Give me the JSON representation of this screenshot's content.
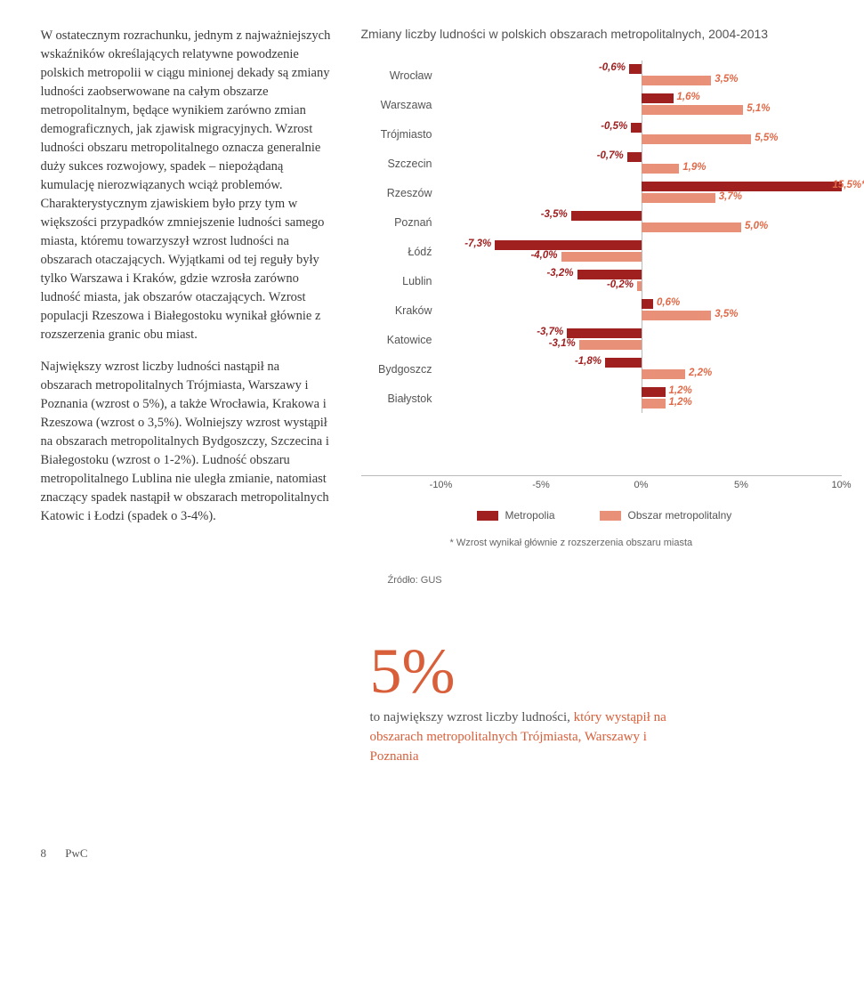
{
  "body_paragraphs": [
    "W ostatecznym rozrachunku, jednym z najważniejszych wskaźników określających relatywne powodzenie polskich metropolii w ciągu minionej dekady są zmiany ludności zaobserwowane na całym obszarze metropolitalnym, będące wynikiem zarówno zmian demograficznych, jak zjawisk migracyjnych. Wzrost ludności obszaru metropolitalnego oznacza generalnie duży sukces rozwojowy, spadek – niepożądaną kumulację nierozwiązanych wciąż problemów. Charakterystycznym zjawiskiem było przy tym w większości przypadków zmniejszenie ludności samego miasta, któremu towarzyszył wzrost ludności na obszarach otaczających. Wyjątkami od tej reguły były tylko Warszawa i Kraków, gdzie wzrosła zarówno ludność miasta, jak obszarów otaczających. Wzrost populacji Rzeszowa i Białegostoku wynikał głównie z rozszerzenia granic obu miast.",
    "Największy wzrost liczby ludności nastąpił na obszarach metropolitalnych Trójmiasta, Warszawy i Poznania (wzrost o 5%), a także Wrocławia, Krakowa i Rzeszowa (wzrost o 3,5%). Wolniejszy wzrost wystąpił na obszarach metropolitalnych Bydgoszczy, Szczecina i Białegostoku (wzrost o 1-2%). Ludność obszaru metropolitalnego Lublina nie uległa zmianie, natomiast znaczący spadek nastąpił w obszarach metropolitalnych Katowic i Łodzi (spadek o 3-4%)."
  ],
  "chart": {
    "title": "Zmiany liczby ludności w polskich obszarach metropolitalnych, 2004-2013",
    "type": "bar",
    "colors": {
      "metropolia": "#a02020",
      "obszar": "#e89078",
      "text_neg": "#a02020",
      "text_pos": "#e06a48",
      "grid": "#b9b9b9"
    },
    "x_min": -10,
    "x_max": 10,
    "x_ticks": [
      -10,
      -5,
      0,
      5,
      10
    ],
    "label_fontsize": 12.5,
    "value_fontsize": 11.5,
    "rows": [
      {
        "label": "Wrocław",
        "metro": -0.6,
        "metro_label": "-0,6%",
        "obszar": 3.5,
        "obszar_label": "3,5%"
      },
      {
        "label": "Warszawa",
        "metro": 1.6,
        "metro_label": "1,6%",
        "obszar": 5.1,
        "obszar_label": "5,1%"
      },
      {
        "label": "Trójmiasto",
        "metro": -0.5,
        "metro_label": "-0,5%",
        "obszar": 5.5,
        "obszar_label": "5,5%"
      },
      {
        "label": "Szczecin",
        "metro": -0.7,
        "metro_label": "-0,7%",
        "obszar": 1.9,
        "obszar_label": "1,9%"
      },
      {
        "label": "Rzeszów",
        "metro": 15.5,
        "metro_label": "15,5%*",
        "obszar": 3.7,
        "obszar_label": "3,7%",
        "metro_clip": 10
      },
      {
        "label": "Poznań",
        "metro": -3.5,
        "metro_label": "-3,5%",
        "obszar": 5.0,
        "obszar_label": "5,0%"
      },
      {
        "label": "Łódź",
        "metro": -7.3,
        "metro_label": "-7,3%",
        "obszar": -4.0,
        "obszar_label": "-4,0%"
      },
      {
        "label": "Lublin",
        "metro": -3.2,
        "metro_label": "-3,2%",
        "obszar": -0.2,
        "obszar_label": "-0,2%"
      },
      {
        "label": "Kraków",
        "metro": 0.6,
        "metro_label": "0,6%",
        "obszar": 3.5,
        "obszar_label": "3,5%"
      },
      {
        "label": "Katowice",
        "metro": -3.7,
        "metro_label": "-3,7%",
        "obszar": -3.1,
        "obszar_label": "-3,1%"
      },
      {
        "label": "Bydgoszcz",
        "metro": -1.8,
        "metro_label": "-1,8%",
        "obszar": 2.2,
        "obszar_label": "2,2%"
      },
      {
        "label": "Białystok",
        "metro": 1.2,
        "metro_label": "1,2%",
        "obszar": 1.2,
        "obszar_label": "1,2%"
      }
    ],
    "legend": [
      {
        "label": "Metropolia",
        "color": "#a02020"
      },
      {
        "label": "Obszar metropolitalny",
        "color": "#e89078"
      }
    ],
    "footnote": "* Wzrost wynikał głównie z rozszerzenia obszaru miasta",
    "source": "Źródło: GUS"
  },
  "stat": {
    "number": "5%",
    "line1": "to największy wzrost liczby ludności,",
    "line2": "który wystąpił na obszarach metropolitalnych Trójmiasta, Warszawy i Poznania"
  },
  "footer": {
    "page": "8",
    "brand": "PwC"
  }
}
